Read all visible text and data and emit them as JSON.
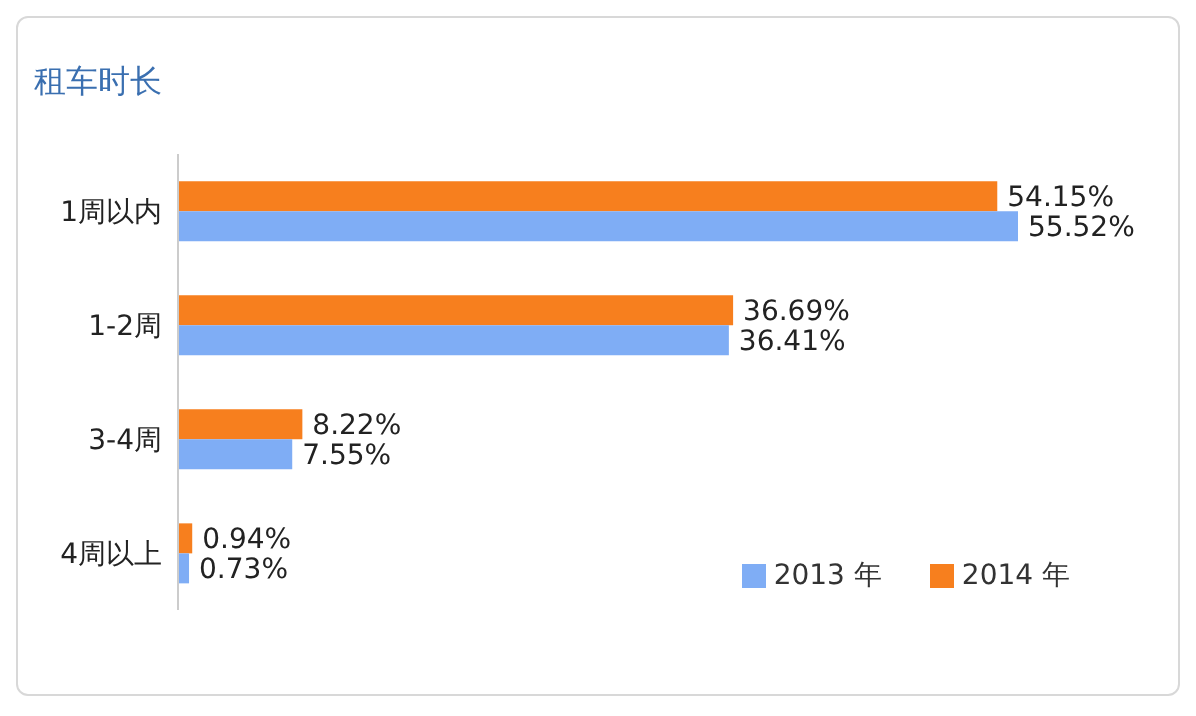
{
  "chart_data": {
    "type": "bar",
    "orientation": "horizontal",
    "title": "租车时长",
    "categories": [
      "1周以内",
      "1-2周",
      "3-4周",
      "4周以上"
    ],
    "series": [
      {
        "name": "2014 年",
        "color": "#f77f1e",
        "values": [
          54.15,
          36.69,
          8.22,
          0.94
        ],
        "value_labels": [
          "54.15%",
          "36.69%",
          "8.22%",
          "0.94%"
        ]
      },
      {
        "name": "2013 年",
        "color": "#7fadf5",
        "values": [
          55.52,
          36.41,
          7.55,
          0.73
        ],
        "value_labels": [
          "55.52%",
          "36.41%",
          "7.55%",
          "0.73%"
        ]
      }
    ],
    "legend": "bottom right"
  }
}
